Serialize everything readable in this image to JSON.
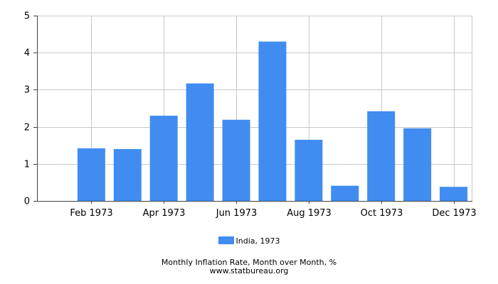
{
  "chart_data": {
    "type": "bar",
    "categories": [
      "Jan 1973",
      "Feb 1973",
      "Mar 1973",
      "Apr 1973",
      "May 1973",
      "Jun 1973",
      "Jul 1973",
      "Aug 1973",
      "Sep 1973",
      "Oct 1973",
      "Nov 1973",
      "Dec 1973"
    ],
    "x_tick_labels": [
      "Feb 1973",
      "Apr 1973",
      "Jun 1973",
      "Aug 1973",
      "Oct 1973",
      "Dec 1973"
    ],
    "series": [
      {
        "name": "India, 1973",
        "color": "#418cf0",
        "values": [
          0,
          1.42,
          1.4,
          2.3,
          3.17,
          2.19,
          4.3,
          1.65,
          0.41,
          2.42,
          1.96,
          0.38
        ]
      }
    ],
    "ylim": [
      0,
      5
    ],
    "y_ticks": [
      0,
      1,
      2,
      3,
      4,
      5
    ],
    "grid": true,
    "legend_position": "bottom-center",
    "caption": "Monthly Inflation Rate, Month over Month, %",
    "source": "www.statbureau.org"
  }
}
